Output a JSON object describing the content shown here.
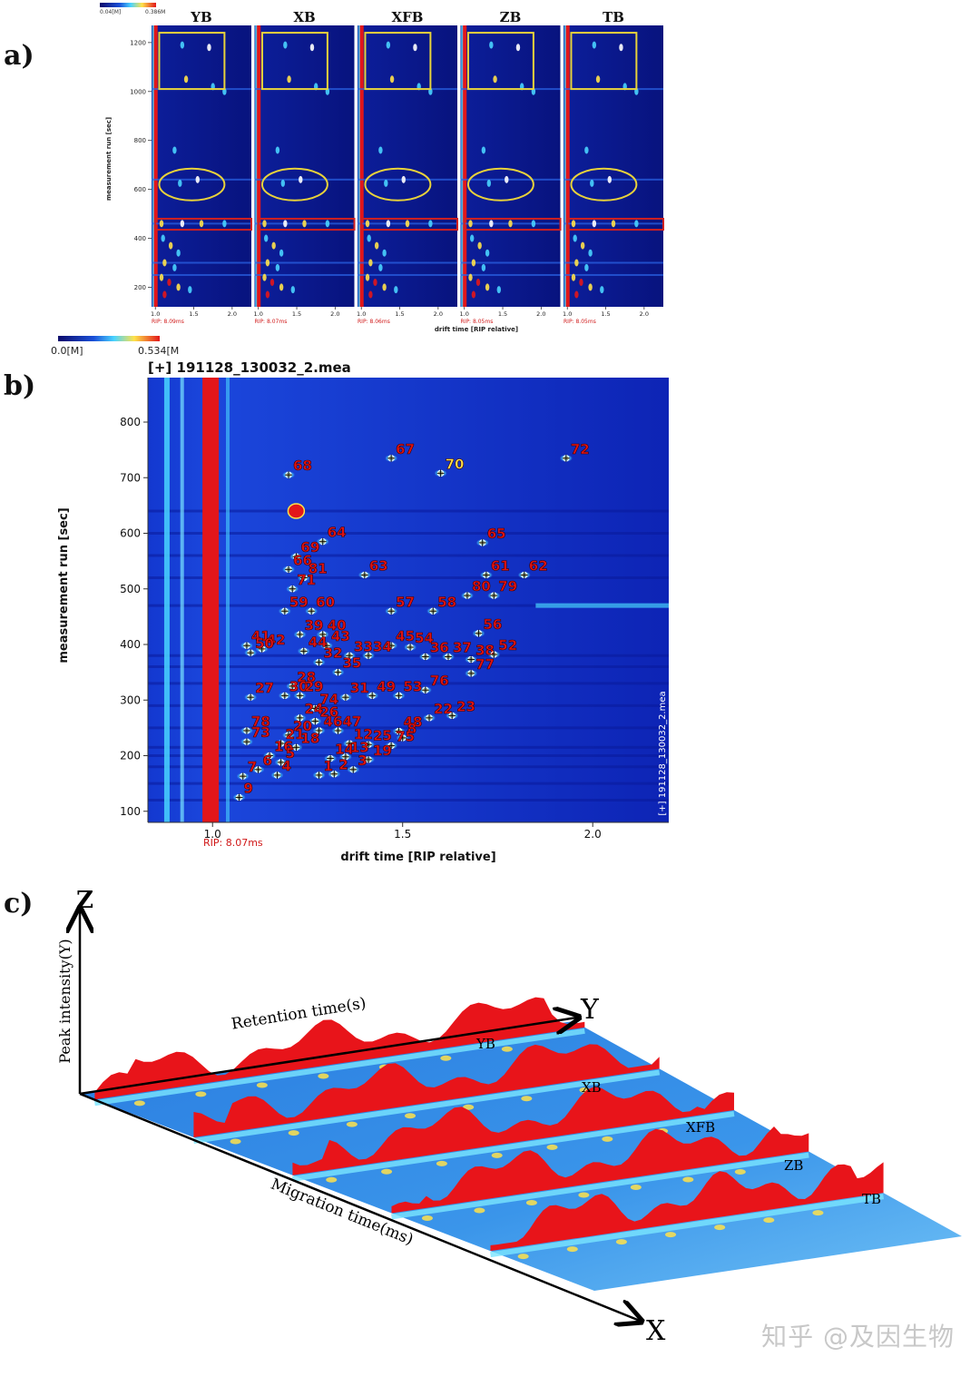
{
  "panels": {
    "a": {
      "letter": "a)"
    },
    "b": {
      "letter": "b)"
    },
    "c": {
      "letter": "c)"
    }
  },
  "watermark": "知乎 @及因生物",
  "chart_data": [
    {
      "type": "heatmap",
      "panel": "a",
      "colorbar": {
        "min_label": "0.04[M]",
        "max_label": "0.386M"
      },
      "samples": [
        "YB",
        "XB",
        "XFB",
        "ZB",
        "TB"
      ],
      "rip_labels": [
        "RIP: 8.09ms",
        "RIP: 8.07ms",
        "RIP: 8.06ms",
        "RIP: 8.05ms",
        "RIP: 8.05ms"
      ],
      "ylabel": "measurement run [sec]",
      "xlabel": "drift time [RIP relative]",
      "yticks": [
        200,
        400,
        600,
        800,
        1000,
        1200
      ],
      "xticks": [
        "1.0",
        "1.5",
        "2.0"
      ],
      "ylim": [
        120,
        1270
      ],
      "xlim": [
        0.95,
        2.25
      ],
      "highlight_regions": [
        {
          "shape": "rectangle",
          "color": "#e8d23a",
          "x": [
            1.05,
            1.9
          ],
          "y": [
            1010,
            1240
          ]
        },
        {
          "shape": "ellipse",
          "color": "#e8d23a",
          "x": [
            1.05,
            1.9
          ],
          "y": [
            555,
            685
          ]
        },
        {
          "shape": "rectangle",
          "color": "#d02020",
          "x": [
            1.0,
            2.25
          ],
          "y": [
            435,
            480
          ]
        }
      ]
    },
    {
      "type": "heatmap",
      "panel": "b",
      "title": "[+] 191128_130032_2.mea",
      "colorbar": {
        "min_label": "0.0[M]",
        "max_label": "0.534[M"
      },
      "xlabel": "drift time [RIP relative]",
      "ylabel": "measurement run [sec]",
      "xticks": [
        1.0,
        1.5,
        2.0
      ],
      "yticks": [
        100,
        200,
        300,
        400,
        500,
        600,
        700,
        800
      ],
      "xlim": [
        0.83,
        2.2
      ],
      "ylim": [
        80,
        880
      ],
      "rip_label": "RIP: 8.07ms",
      "side_label": "[+] 191128_130032_2.mea",
      "peaks": [
        {
          "id": "68",
          "x": 1.2,
          "y": 705
        },
        {
          "id": "67",
          "x": 1.47,
          "y": 735
        },
        {
          "id": "70",
          "x": 1.6,
          "y": 708
        },
        {
          "id": "72",
          "x": 1.93,
          "y": 735
        },
        {
          "id": "64",
          "x": 1.29,
          "y": 585
        },
        {
          "id": "65",
          "x": 1.71,
          "y": 583
        },
        {
          "id": "69",
          "x": 1.22,
          "y": 558
        },
        {
          "id": "63",
          "x": 1.4,
          "y": 525
        },
        {
          "id": "66",
          "x": 1.2,
          "y": 535
        },
        {
          "id": "81",
          "x": 1.24,
          "y": 520
        },
        {
          "id": "61",
          "x": 1.72,
          "y": 525
        },
        {
          "id": "62",
          "x": 1.82,
          "y": 525
        },
        {
          "id": "71",
          "x": 1.21,
          "y": 500
        },
        {
          "id": "80",
          "x": 1.67,
          "y": 488
        },
        {
          "id": "79",
          "x": 1.74,
          "y": 488
        },
        {
          "id": "59",
          "x": 1.19,
          "y": 460
        },
        {
          "id": "60",
          "x": 1.26,
          "y": 460
        },
        {
          "id": "57",
          "x": 1.47,
          "y": 460
        },
        {
          "id": "58",
          "x": 1.58,
          "y": 460
        },
        {
          "id": "39",
          "x": 1.23,
          "y": 418
        },
        {
          "id": "40",
          "x": 1.29,
          "y": 418
        },
        {
          "id": "56",
          "x": 1.7,
          "y": 420
        },
        {
          "id": "41",
          "x": 1.09,
          "y": 398
        },
        {
          "id": "42",
          "x": 1.13,
          "y": 392
        },
        {
          "id": "43",
          "x": 1.3,
          "y": 398
        },
        {
          "id": "45",
          "x": 1.47,
          "y": 398
        },
        {
          "id": "54",
          "x": 1.52,
          "y": 395
        },
        {
          "id": "50",
          "x": 1.1,
          "y": 385
        },
        {
          "id": "44",
          "x": 1.24,
          "y": 388
        },
        {
          "id": "33",
          "x": 1.36,
          "y": 380
        },
        {
          "id": "34",
          "x": 1.41,
          "y": 380
        },
        {
          "id": "36",
          "x": 1.56,
          "y": 378
        },
        {
          "id": "37",
          "x": 1.62,
          "y": 378
        },
        {
          "id": "38",
          "x": 1.68,
          "y": 373
        },
        {
          "id": "52",
          "x": 1.74,
          "y": 382
        },
        {
          "id": "32",
          "x": 1.28,
          "y": 368
        },
        {
          "id": "35",
          "x": 1.33,
          "y": 350
        },
        {
          "id": "77",
          "x": 1.68,
          "y": 348
        },
        {
          "id": "76",
          "x": 1.56,
          "y": 318
        },
        {
          "id": "28",
          "x": 1.21,
          "y": 325
        },
        {
          "id": "27",
          "x": 1.1,
          "y": 305
        },
        {
          "id": "30",
          "x": 1.19,
          "y": 308
        },
        {
          "id": "29",
          "x": 1.23,
          "y": 308
        },
        {
          "id": "31",
          "x": 1.35,
          "y": 305
        },
        {
          "id": "49",
          "x": 1.42,
          "y": 308
        },
        {
          "id": "53",
          "x": 1.49,
          "y": 308
        },
        {
          "id": "74",
          "x": 1.27,
          "y": 285
        },
        {
          "id": "24",
          "x": 1.23,
          "y": 268
        },
        {
          "id": "22",
          "x": 1.57,
          "y": 268
        },
        {
          "id": "23",
          "x": 1.63,
          "y": 272
        },
        {
          "id": "26",
          "x": 1.27,
          "y": 262
        },
        {
          "id": "46",
          "x": 1.28,
          "y": 245
        },
        {
          "id": "47",
          "x": 1.33,
          "y": 245
        },
        {
          "id": "48",
          "x": 1.49,
          "y": 244
        },
        {
          "id": "8",
          "x": 1.5,
          "y": 232
        },
        {
          "id": "78",
          "x": 1.09,
          "y": 245
        },
        {
          "id": "73",
          "x": 1.09,
          "y": 225
        },
        {
          "id": "20",
          "x": 1.2,
          "y": 237
        },
        {
          "id": "21",
          "x": 1.18,
          "y": 222
        },
        {
          "id": "18",
          "x": 1.22,
          "y": 215
        },
        {
          "id": "12",
          "x": 1.36,
          "y": 222
        },
        {
          "id": "25",
          "x": 1.41,
          "y": 220
        },
        {
          "id": "75",
          "x": 1.47,
          "y": 218
        },
        {
          "id": "16",
          "x": 1.15,
          "y": 200
        },
        {
          "id": "5",
          "x": 1.18,
          "y": 188
        },
        {
          "id": "14",
          "x": 1.31,
          "y": 195
        },
        {
          "id": "13",
          "x": 1.35,
          "y": 198
        },
        {
          "id": "19",
          "x": 1.41,
          "y": 193
        },
        {
          "id": "3",
          "x": 1.37,
          "y": 175
        },
        {
          "id": "6",
          "x": 1.12,
          "y": 175
        },
        {
          "id": "7",
          "x": 1.08,
          "y": 163
        },
        {
          "id": "4",
          "x": 1.17,
          "y": 165
        },
        {
          "id": "1",
          "x": 1.28,
          "y": 165
        },
        {
          "id": "2",
          "x": 1.32,
          "y": 167
        },
        {
          "id": "9",
          "x": 1.07,
          "y": 125
        }
      ]
    },
    {
      "type": "area",
      "panel": "c",
      "projection": "3d",
      "series": [
        {
          "name": "YB"
        },
        {
          "name": "XB"
        },
        {
          "name": "XFB"
        },
        {
          "name": "ZB"
        },
        {
          "name": "TB"
        }
      ],
      "axis_labels": {
        "z": "Z",
        "y": "Y",
        "x": "X",
        "peak_intensity": "Peak intensity(Y)",
        "retention_time": "Retention time(s)",
        "migration_time": "Migration time(ms)"
      }
    }
  ]
}
